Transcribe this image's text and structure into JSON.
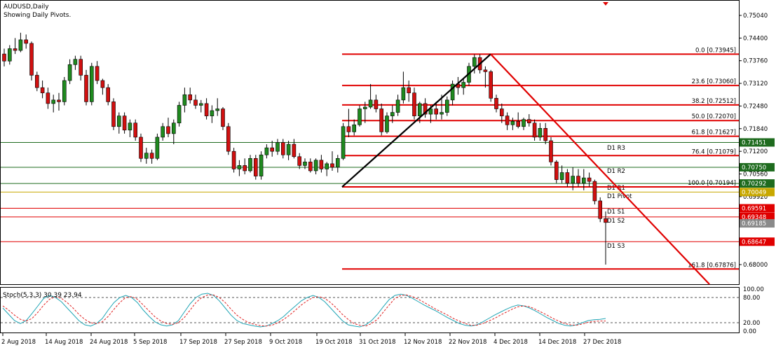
{
  "header": {
    "symbol_line": "AUDUSD,Daily",
    "pivot_line": "Showing Daily Pivots."
  },
  "chart_data": {
    "type": "candlestick",
    "symbol": "AUDUSD",
    "timeframe": "Daily",
    "y_ticks": [
      "0.75040",
      "0.74400",
      "0.73760",
      "0.73120",
      "0.72480",
      "0.71840",
      "0.71200",
      "0.70560",
      "0.69920",
      "0.68000"
    ],
    "x_ticks": [
      "2 Aug 2018",
      "14 Aug 2018",
      "24 Aug 2018",
      "5 Sep 2018",
      "17 Sep 2018",
      "27 Sep 2018",
      "9 Oct 2018",
      "19 Oct 2018",
      "31 Oct 2018",
      "12 Nov 2018",
      "22 Nov 2018",
      "4 Dec 2018",
      "14 Dec 2018",
      "27 Dec 2018"
    ],
    "fib_levels": [
      {
        "label": "0.0 [0.73945]",
        "value": 0.73945
      },
      {
        "label": "23.6 [0.73060]",
        "value": 0.7306
      },
      {
        "label": "38.2 [0.72512]",
        "value": 0.72512
      },
      {
        "label": "50.0 [0.72070]",
        "value": 0.7207
      },
      {
        "label": "61.8 [0.71627]",
        "value": 0.71627
      },
      {
        "label": "76.4 [0.71079]",
        "value": 0.71079
      },
      {
        "label": "100.0 [0.70194]",
        "value": 0.70194
      },
      {
        "label": "161.8 [0.67876]",
        "value": 0.67876
      }
    ],
    "pivots": [
      {
        "label": "D1 R3",
        "value": 0.71451,
        "badge": "0.71451",
        "color": "#1e6b1e"
      },
      {
        "label": "D1 R2",
        "value": 0.7075,
        "badge": "0.70750",
        "color": "#1e6b1e"
      },
      {
        "label": "D1 R1",
        "value": 0.70292,
        "badge": "0.70292",
        "color": "#1e6b1e"
      },
      {
        "label": "D1 Pivot",
        "value": 0.70049,
        "badge": "0.70049",
        "color": "#c8a800"
      },
      {
        "label": "D1 S1",
        "value": 0.69591,
        "badge": "0.69591",
        "color": "#e00000"
      },
      {
        "label": "D1 S2",
        "value": 0.69348,
        "badge": "0.69348",
        "color": "#e00000"
      },
      {
        "label": "D1 S3",
        "value": 0.68647,
        "badge": "0.68647",
        "color": "#e00000"
      }
    ],
    "current_price_badge": "0.69185",
    "current_price": 0.69185,
    "candles": [
      [
        0.7395,
        0.741,
        0.736,
        0.7375
      ],
      [
        0.7375,
        0.742,
        0.7365,
        0.741
      ],
      [
        0.741,
        0.744,
        0.7395,
        0.7405
      ],
      [
        0.7405,
        0.7455,
        0.74,
        0.7435
      ],
      [
        0.7435,
        0.745,
        0.741,
        0.7425
      ],
      [
        0.7425,
        0.743,
        0.732,
        0.7335
      ],
      [
        0.7335,
        0.7345,
        0.729,
        0.73
      ],
      [
        0.73,
        0.732,
        0.727,
        0.7285
      ],
      [
        0.7285,
        0.73,
        0.724,
        0.7255
      ],
      [
        0.7255,
        0.728,
        0.723,
        0.7265
      ],
      [
        0.7265,
        0.7285,
        0.7235,
        0.726
      ],
      [
        0.726,
        0.733,
        0.725,
        0.732
      ],
      [
        0.732,
        0.738,
        0.731,
        0.7365
      ],
      [
        0.7365,
        0.739,
        0.735,
        0.738
      ],
      [
        0.738,
        0.739,
        0.732,
        0.7335
      ],
      [
        0.7335,
        0.735,
        0.725,
        0.726
      ],
      [
        0.726,
        0.737,
        0.725,
        0.736
      ],
      [
        0.736,
        0.7375,
        0.731,
        0.732
      ],
      [
        0.732,
        0.7325,
        0.728,
        0.73
      ],
      [
        0.73,
        0.731,
        0.725,
        0.726
      ],
      [
        0.726,
        0.727,
        0.718,
        0.719
      ],
      [
        0.719,
        0.723,
        0.717,
        0.722
      ],
      [
        0.722,
        0.723,
        0.717,
        0.718
      ],
      [
        0.718,
        0.721,
        0.716,
        0.72
      ],
      [
        0.72,
        0.721,
        0.715,
        0.716
      ],
      [
        0.716,
        0.717,
        0.709,
        0.71
      ],
      [
        0.71,
        0.713,
        0.7085,
        0.7115
      ],
      [
        0.7115,
        0.7125,
        0.7085,
        0.71
      ],
      [
        0.71,
        0.717,
        0.7095,
        0.716
      ],
      [
        0.716,
        0.72,
        0.715,
        0.719
      ],
      [
        0.719,
        0.7215,
        0.716,
        0.717
      ],
      [
        0.717,
        0.721,
        0.714,
        0.72
      ],
      [
        0.72,
        0.726,
        0.719,
        0.725
      ],
      [
        0.725,
        0.73,
        0.723,
        0.728
      ],
      [
        0.728,
        0.73,
        0.7255,
        0.7265
      ],
      [
        0.7265,
        0.728,
        0.724,
        0.725
      ],
      [
        0.725,
        0.7265,
        0.723,
        0.7255
      ],
      [
        0.7255,
        0.727,
        0.721,
        0.722
      ],
      [
        0.722,
        0.725,
        0.72,
        0.7235
      ],
      [
        0.7235,
        0.727,
        0.722,
        0.724
      ],
      [
        0.724,
        0.7245,
        0.718,
        0.719
      ],
      [
        0.719,
        0.72,
        0.711,
        0.712
      ],
      [
        0.712,
        0.713,
        0.706,
        0.707
      ],
      [
        0.707,
        0.7095,
        0.705,
        0.708
      ],
      [
        0.708,
        0.71,
        0.7055,
        0.7065
      ],
      [
        0.7065,
        0.711,
        0.706,
        0.71
      ],
      [
        0.71,
        0.711,
        0.704,
        0.705
      ],
      [
        0.705,
        0.712,
        0.704,
        0.711
      ],
      [
        0.711,
        0.714,
        0.71,
        0.713
      ],
      [
        0.713,
        0.715,
        0.7105,
        0.712
      ],
      [
        0.712,
        0.7155,
        0.711,
        0.7145
      ],
      [
        0.7145,
        0.7155,
        0.71,
        0.711
      ],
      [
        0.711,
        0.715,
        0.7095,
        0.714
      ],
      [
        0.714,
        0.7155,
        0.71,
        0.7105
      ],
      [
        0.7105,
        0.7115,
        0.707,
        0.708
      ],
      [
        0.708,
        0.71,
        0.707,
        0.709
      ],
      [
        0.709,
        0.71,
        0.706,
        0.7065
      ],
      [
        0.7065,
        0.71,
        0.7055,
        0.7095
      ],
      [
        0.7095,
        0.711,
        0.706,
        0.707
      ],
      [
        0.707,
        0.709,
        0.705,
        0.7085
      ],
      [
        0.7085,
        0.712,
        0.7065,
        0.7075
      ],
      [
        0.7075,
        0.711,
        0.706,
        0.71
      ],
      [
        0.71,
        0.72,
        0.7095,
        0.719
      ],
      [
        0.719,
        0.724,
        0.716,
        0.7175
      ],
      [
        0.7175,
        0.721,
        0.7165,
        0.7195
      ],
      [
        0.7195,
        0.725,
        0.719,
        0.724
      ],
      [
        0.724,
        0.726,
        0.72,
        0.7245
      ],
      [
        0.7245,
        0.731,
        0.724,
        0.7265
      ],
      [
        0.7265,
        0.728,
        0.723,
        0.724
      ],
      [
        0.724,
        0.7255,
        0.7165,
        0.7175
      ],
      [
        0.7175,
        0.723,
        0.717,
        0.722
      ],
      [
        0.722,
        0.725,
        0.72,
        0.723
      ],
      [
        0.723,
        0.728,
        0.722,
        0.7265
      ],
      [
        0.7265,
        0.7345,
        0.7255,
        0.73
      ],
      [
        0.73,
        0.732,
        0.726,
        0.7285
      ],
      [
        0.7285,
        0.73,
        0.721,
        0.722
      ],
      [
        0.722,
        0.726,
        0.72,
        0.7255
      ],
      [
        0.7255,
        0.727,
        0.7215,
        0.7225
      ],
      [
        0.7225,
        0.725,
        0.72,
        0.724
      ],
      [
        0.724,
        0.726,
        0.721,
        0.7225
      ],
      [
        0.7225,
        0.728,
        0.721,
        0.723
      ],
      [
        0.723,
        0.7275,
        0.722,
        0.7265
      ],
      [
        0.7265,
        0.732,
        0.725,
        0.731
      ],
      [
        0.731,
        0.733,
        0.728,
        0.73
      ],
      [
        0.73,
        0.7325,
        0.728,
        0.7315
      ],
      [
        0.7315,
        0.737,
        0.7305,
        0.736
      ],
      [
        0.736,
        0.7394,
        0.734,
        0.7385
      ],
      [
        0.7385,
        0.7394,
        0.734,
        0.735
      ],
      [
        0.735,
        0.736,
        0.73,
        0.7345
      ],
      [
        0.7345,
        0.735,
        0.726,
        0.727
      ],
      [
        0.727,
        0.728,
        0.723,
        0.724
      ],
      [
        0.724,
        0.7255,
        0.72,
        0.722
      ],
      [
        0.722,
        0.723,
        0.718,
        0.7195
      ],
      [
        0.7195,
        0.7215,
        0.718,
        0.7205
      ],
      [
        0.7205,
        0.723,
        0.7185,
        0.719
      ],
      [
        0.719,
        0.7215,
        0.718,
        0.721
      ],
      [
        0.721,
        0.7225,
        0.719,
        0.72
      ],
      [
        0.72,
        0.721,
        0.715,
        0.716
      ],
      [
        0.716,
        0.72,
        0.715,
        0.7185
      ],
      [
        0.7185,
        0.72,
        0.714,
        0.715
      ],
      [
        0.715,
        0.716,
        0.708,
        0.709
      ],
      [
        0.709,
        0.7095,
        0.703,
        0.704
      ],
      [
        0.704,
        0.708,
        0.703,
        0.706
      ],
      [
        0.706,
        0.707,
        0.702,
        0.703
      ],
      [
        0.703,
        0.7075,
        0.701,
        0.705
      ],
      [
        0.705,
        0.707,
        0.702,
        0.703
      ],
      [
        0.703,
        0.707,
        0.701,
        0.7045
      ],
      [
        0.7045,
        0.706,
        0.702,
        0.7035
      ],
      [
        0.7035,
        0.704,
        0.697,
        0.698
      ],
      [
        0.698,
        0.699,
        0.692,
        0.693
      ],
      [
        0.693,
        0.695,
        0.68,
        0.6919
      ]
    ]
  },
  "stoch": {
    "label": "Stoch(5,3,3) 30.39 23.94",
    "axis": [
      "100.00",
      "80.00",
      "20.00",
      "0.00"
    ],
    "main": [
      55,
      40,
      25,
      18,
      25,
      42,
      60,
      78,
      85,
      80,
      70,
      55,
      40,
      25,
      15,
      12,
      18,
      30,
      50,
      68,
      80,
      85,
      80,
      68,
      50,
      35,
      22,
      15,
      12,
      15,
      25,
      45,
      65,
      80,
      88,
      90,
      85,
      72,
      55,
      38,
      25,
      18,
      15,
      12,
      10,
      12,
      18,
      25,
      35,
      48,
      60,
      72,
      80,
      85,
      80,
      70,
      55,
      40,
      25,
      15,
      12,
      10,
      15,
      25,
      40,
      58,
      75,
      85,
      88,
      85,
      78,
      70,
      62,
      55,
      48,
      40,
      32,
      25,
      18,
      14,
      12,
      15,
      22,
      30,
      38,
      45,
      52,
      58,
      62,
      60,
      55,
      48,
      40,
      32,
      25,
      18,
      14,
      12,
      15,
      20,
      25,
      27,
      28,
      30
    ],
    "signal": [
      60,
      50,
      38,
      28,
      24,
      30,
      45,
      62,
      76,
      82,
      78,
      68,
      55,
      40,
      28,
      20,
      18,
      22,
      35,
      52,
      68,
      80,
      82,
      76,
      62,
      48,
      34,
      24,
      18,
      16,
      20,
      32,
      50,
      68,
      80,
      86,
      86,
      80,
      68,
      52,
      38,
      28,
      20,
      16,
      13,
      12,
      14,
      20,
      28,
      38,
      50,
      62,
      72,
      80,
      82,
      78,
      68,
      55,
      40,
      28,
      18,
      14,
      12,
      18,
      28,
      45,
      62,
      78,
      85,
      86,
      82,
      76,
      68,
      60,
      52,
      45,
      38,
      30,
      24,
      18,
      14,
      14,
      18,
      24,
      30,
      38,
      45,
      52,
      58,
      60,
      58,
      52,
      45,
      38,
      30,
      24,
      18,
      15,
      14,
      17,
      21,
      23,
      24,
      24
    ]
  },
  "colors": {
    "bull": "#1f8a1f",
    "bear": "#d11010",
    "fib": "#e00000",
    "trend": "#000000",
    "pivot_label_text": "#000000"
  }
}
